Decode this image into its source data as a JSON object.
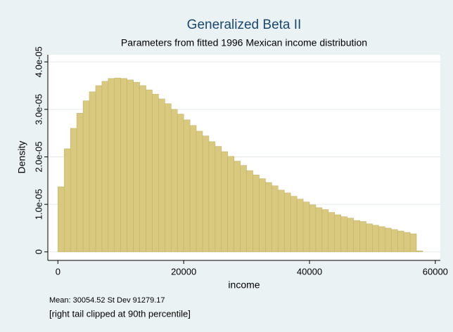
{
  "chart_data": {
    "type": "histogram",
    "title": "Generalized Beta II",
    "subtitle": "Parameters from fitted 1996 Mexican income distribution",
    "x_label": "income",
    "y_label": "Density",
    "notes": [
      "Mean: 30054.52 St Dev 91279.17",
      "[right tail clipped at 90th percentile]"
    ],
    "bins": [
      0,
      1000,
      2000,
      3000,
      4000,
      5000,
      6000,
      7000,
      8000,
      9000,
      10000,
      11000,
      12000,
      13000,
      14000,
      15000,
      16000,
      17000,
      18000,
      19000,
      20000,
      21000,
      22000,
      23000,
      24000,
      25000,
      26000,
      27000,
      28000,
      29000,
      30000,
      31000,
      32000,
      33000,
      34000,
      35000,
      36000,
      37000,
      38000,
      39000,
      40000,
      41000,
      42000,
      43000,
      44000,
      45000,
      46000,
      47000,
      48000,
      49000,
      50000,
      51000,
      52000,
      53000,
      54000,
      55000,
      56000,
      57000,
      58000
    ],
    "values": [
      1.37e-05,
      2.17e-05,
      2.6e-05,
      2.92e-05,
      3.18e-05,
      3.37e-05,
      3.5e-05,
      3.59e-05,
      3.65e-05,
      3.66e-05,
      3.65e-05,
      3.62e-05,
      3.57e-05,
      3.5e-05,
      3.41e-05,
      3.32e-05,
      3.22e-05,
      3.12e-05,
      3e-05,
      2.9e-05,
      2.78e-05,
      2.66e-05,
      2.54e-05,
      2.44e-05,
      2.32e-05,
      2.22e-05,
      2.11e-05,
      2.01e-05,
      1.91e-05,
      1.82e-05,
      1.71e-05,
      1.62e-05,
      1.54e-05,
      1.46e-05,
      1.39e-05,
      1.3e-05,
      1.24e-05,
      1.17e-05,
      1.11e-05,
      1.05e-05,
      9.9e-06,
      9.3e-06,
      8.9e-06,
      8.3e-06,
      7.8e-06,
      7.4e-06,
      7.1e-06,
      6.6e-06,
      6.4e-06,
      5.9e-06,
      5.6e-06,
      5.3e-06,
      5e-06,
      4.7e-06,
      4.4e-06,
      4.1e-06,
      3.8e-06,
      2e-07
    ],
    "color": "#d9c97f",
    "xlim": [
      -1600,
      60800
    ],
    "xticks": [
      0,
      20000,
      40000,
      60000
    ],
    "ylim": [
      -1.8e-06,
      4.15e-05
    ],
    "yticks": [
      0,
      {
        "value": 1e-05,
        "label": "1.0e-05"
      },
      {
        "value": 2e-05,
        "label": "2.0e-05"
      },
      {
        "value": 3e-05,
        "label": "3.0e-05"
      },
      {
        "value": 4e-05,
        "label": "4.0e-05"
      }
    ],
    "grid": true
  }
}
